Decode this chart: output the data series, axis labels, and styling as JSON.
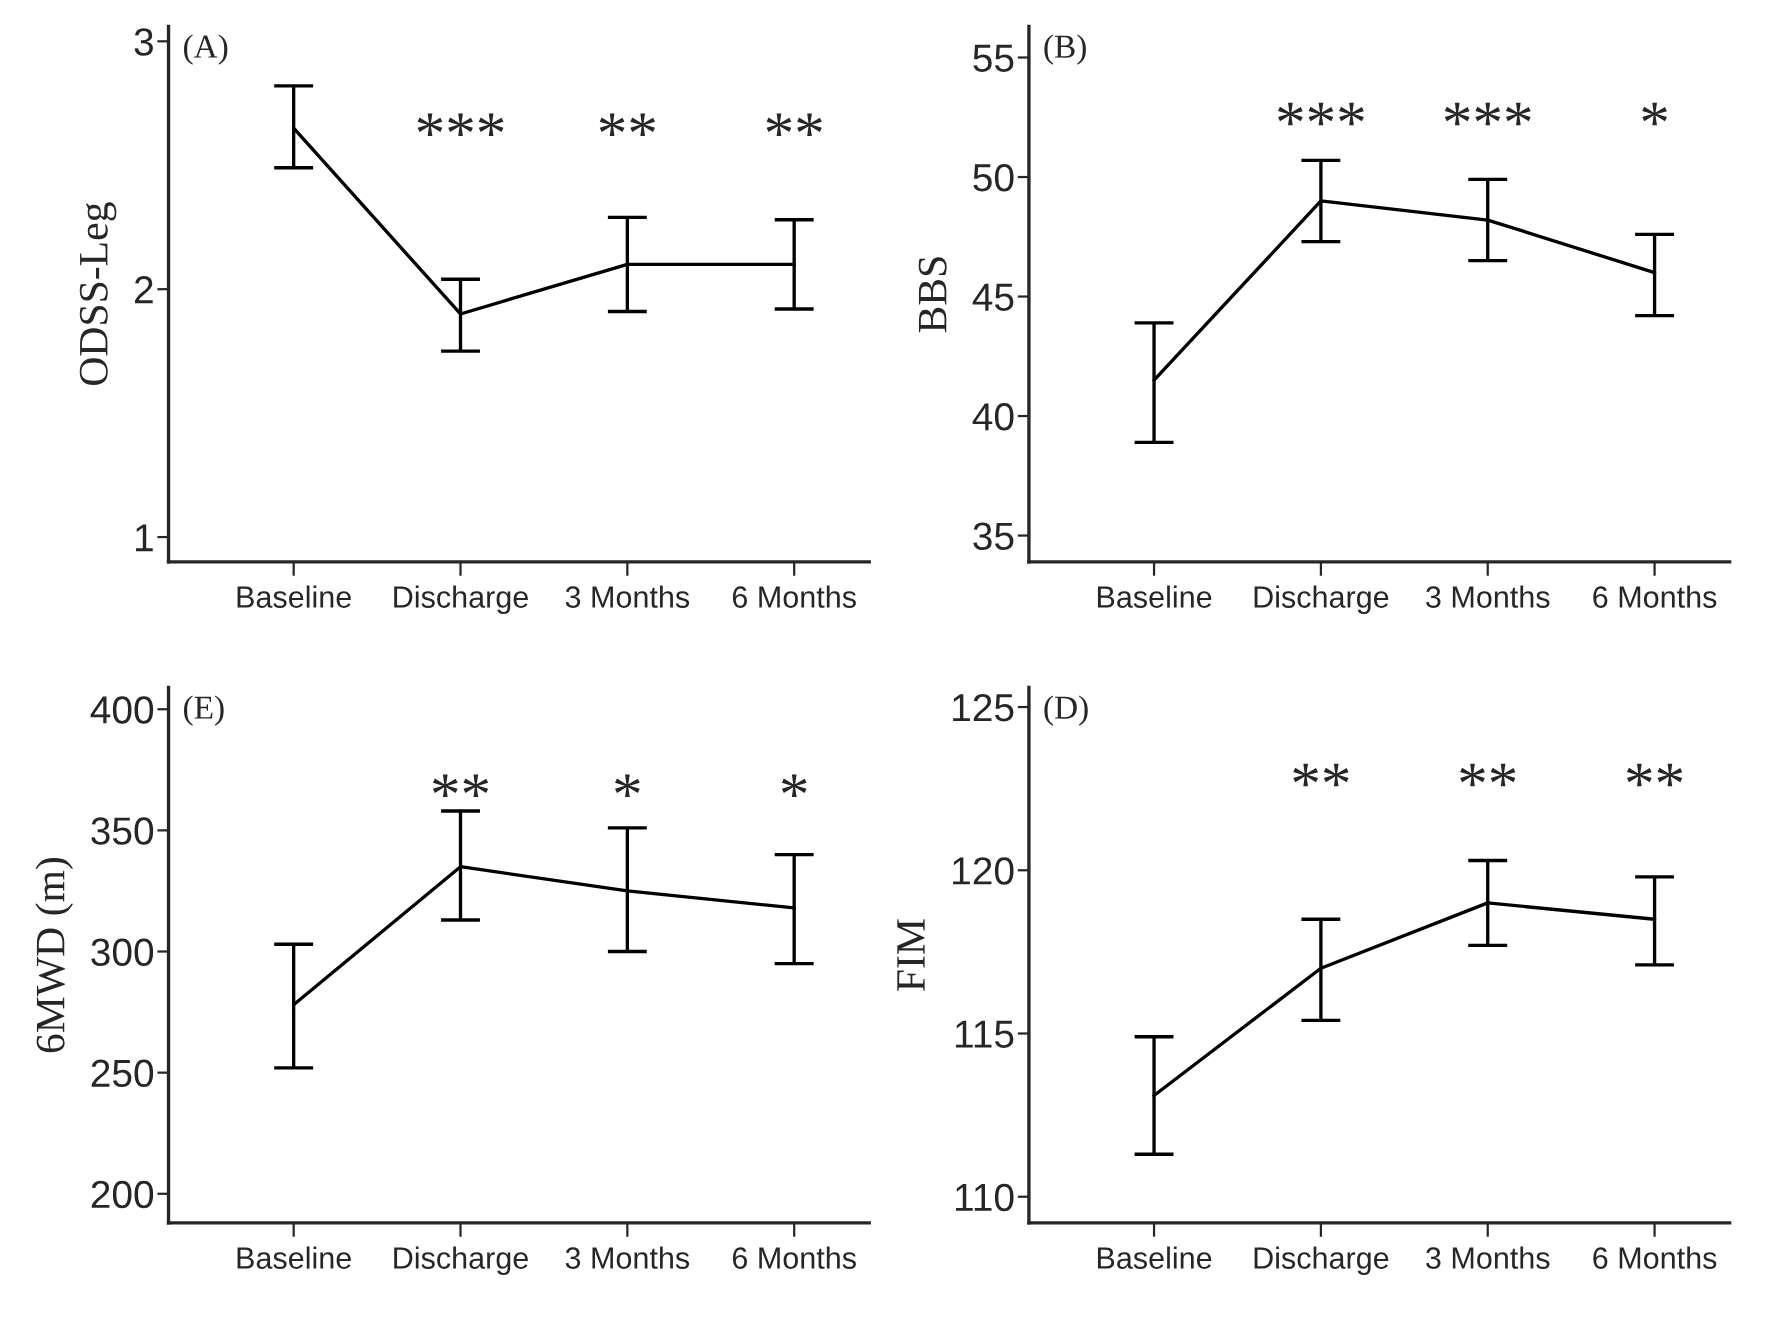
{
  "chart_data": [
    {
      "type": "line",
      "ylabel": "ODSS-Leg",
      "categories": [
        "Baseline",
        "Discharge",
        "3 Months",
        "6 Months"
      ],
      "series": [
        {
          "color": "#000000",
          "values": [
            2.65,
            1.9,
            2.1,
            2.1
          ],
          "errors": [
            [
              2.49,
              2.82
            ],
            [
              1.75,
              2.04
            ],
            [
              1.91,
              2.29
            ],
            [
              1.92,
              2.28
            ]
          ]
        }
      ],
      "ylim": [
        0.9,
        3.06
      ],
      "yticks": [
        1,
        2,
        3
      ],
      "grid": false,
      "marker": "none",
      "line_style": "solid",
      "annotations": [
        "(A)",
        "***",
        "**",
        "**"
      ]
    },
    {
      "type": "line",
      "ylabel": "BBS",
      "categories": [
        "Baseline",
        "Discharge",
        "3 Months",
        "6 Months"
      ],
      "series": [
        {
          "color": "#000000",
          "values": [
            41.5,
            49.0,
            48.2,
            46.0
          ],
          "errors": [
            [
              38.9,
              43.9
            ],
            [
              47.3,
              50.7
            ],
            [
              46.5,
              49.9
            ],
            [
              44.2,
              47.6
            ]
          ]
        }
      ],
      "ylim": [
        33.9,
        56.3
      ],
      "yticks": [
        35,
        40,
        45,
        50,
        55
      ],
      "grid": false,
      "marker": "none",
      "line_style": "solid",
      "annotations": [
        "(B)",
        "***",
        "***",
        "*"
      ]
    },
    {
      "type": "line",
      "ylabel": "6MWD (m)",
      "categories": [
        "Baseline",
        "Discharge",
        "3 Months",
        "6 Months"
      ],
      "series": [
        {
          "color": "#000000",
          "values": [
            278,
            335,
            325,
            318
          ],
          "errors": [
            [
              252,
              303
            ],
            [
              313,
              358
            ],
            [
              300,
              351
            ],
            [
              295,
              340
            ]
          ]
        }
      ],
      "ylim": [
        188,
        409
      ],
      "yticks": [
        200,
        250,
        300,
        350,
        400
      ],
      "grid": false,
      "marker": "none",
      "line_style": "solid",
      "annotations": [
        "(E)",
        "**",
        "*",
        "*"
      ]
    },
    {
      "type": "line",
      "ylabel": "FIM",
      "categories": [
        "Baseline",
        "Discharge",
        "3 Months",
        "6 Months"
      ],
      "series": [
        {
          "color": "#000000",
          "values": [
            113.1,
            117.0,
            119.0,
            118.5
          ],
          "errors": [
            [
              111.3,
              114.9
            ],
            [
              115.4,
              118.5
            ],
            [
              117.7,
              120.3
            ],
            [
              117.1,
              119.8
            ]
          ]
        }
      ],
      "ylim": [
        109.2,
        125.6
      ],
      "yticks": [
        110,
        115,
        120,
        125
      ],
      "grid": false,
      "marker": "none",
      "line_style": "solid",
      "annotations": [
        "(D)",
        "**",
        "**",
        "**"
      ]
    }
  ]
}
